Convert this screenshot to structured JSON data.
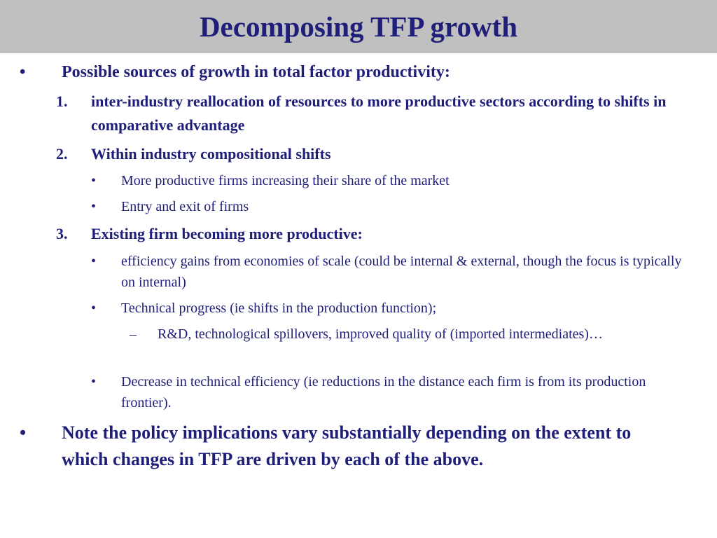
{
  "slide": {
    "title": "Decomposing TFP growth",
    "bullet_glyph": "•",
    "dash_glyph": "–",
    "intro": "Possible sources of growth in total factor productivity:",
    "items": [
      {
        "number": "1.",
        "text": "inter-industry reallocation of resources to more productive sectors according to shifts in comparative advantage"
      },
      {
        "number": "2.",
        "text": "Within industry compositional shifts",
        "subs": [
          "More productive firms increasing their share of the market",
          "Entry and exit of firms"
        ]
      },
      {
        "number": "3.",
        "text": "Existing firm becoming more productive:",
        "subs": [
          "efficiency gains from economies of scale (could be internal & external, though the focus is typically on internal)",
          "Technical progress (ie shifts in the production function);",
          "Decrease in technical efficiency (ie reductions in the distance each firm is from its production frontier)."
        ],
        "subsub": "R&D, technological spillovers, improved quality of (imported intermediates)…"
      }
    ],
    "note": "Note the policy implications vary substantially depending on the extent to which changes in TFP are driven by each of the above."
  }
}
